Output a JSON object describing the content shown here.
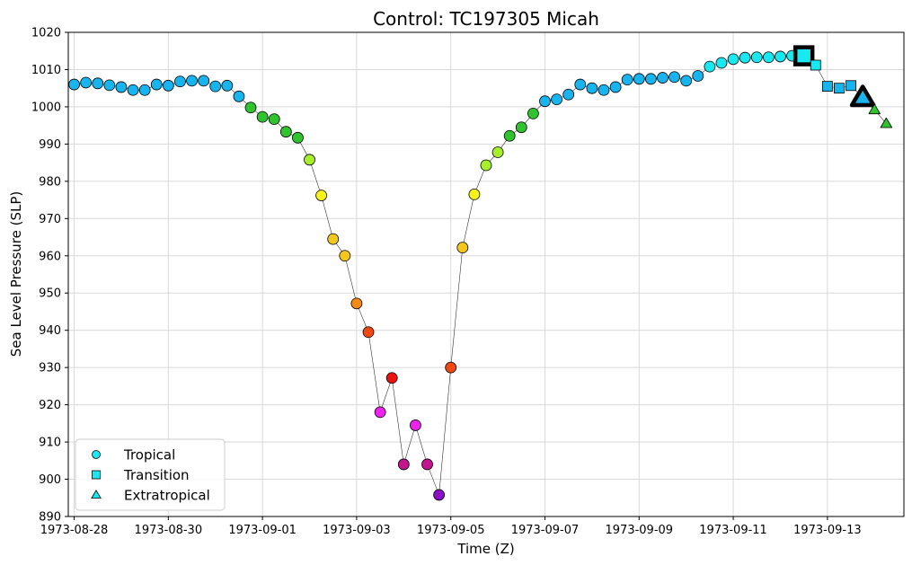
{
  "chart_data": {
    "type": "scatter",
    "title": "Control: TC197305 Micah",
    "xlabel": "Time (Z)",
    "ylabel": "Sea Level Pressure (SLP)",
    "ylim": [
      890,
      1020
    ],
    "yticks": [
      890,
      900,
      910,
      920,
      930,
      940,
      950,
      960,
      970,
      980,
      990,
      1000,
      1010,
      1020
    ],
    "xlim": [
      "1973-08-27 21:00",
      "1973-09-14 15:00"
    ],
    "xticks": [
      "1973-08-28",
      "1973-08-30",
      "1973-09-01",
      "1973-09-03",
      "1973-09-05",
      "1973-09-07",
      "1973-09-09",
      "1973-09-11",
      "1973-09-13"
    ],
    "grid": true,
    "legend_position": "lower-left",
    "legend": [
      {
        "label": "Tropical",
        "marker": "circle"
      },
      {
        "label": "Transition",
        "marker": "square"
      },
      {
        "label": "Extratropical",
        "marker": "triangle"
      }
    ],
    "points": [
      {
        "t": "1973-08-28 00:00",
        "slp": 1006,
        "phase": "tropical",
        "color": "#17b4f0"
      },
      {
        "t": "1973-08-28 06:00",
        "slp": 1006.5,
        "phase": "tropical",
        "color": "#17b4f0"
      },
      {
        "t": "1973-08-28 12:00",
        "slp": 1006.3,
        "phase": "tropical",
        "color": "#17b4f0"
      },
      {
        "t": "1973-08-28 18:00",
        "slp": 1005.8,
        "phase": "tropical",
        "color": "#17b4f0"
      },
      {
        "t": "1973-08-29 00:00",
        "slp": 1005.3,
        "phase": "tropical",
        "color": "#17b4f0"
      },
      {
        "t": "1973-08-29 06:00",
        "slp": 1004.5,
        "phase": "tropical",
        "color": "#17b4f0"
      },
      {
        "t": "1973-08-29 12:00",
        "slp": 1004.5,
        "phase": "tropical",
        "color": "#17b4f0"
      },
      {
        "t": "1973-08-29 18:00",
        "slp": 1006,
        "phase": "tropical",
        "color": "#17b4f0"
      },
      {
        "t": "1973-08-30 00:00",
        "slp": 1005.7,
        "phase": "tropical",
        "color": "#17b4f0"
      },
      {
        "t": "1973-08-30 06:00",
        "slp": 1006.8,
        "phase": "tropical",
        "color": "#17b4f0"
      },
      {
        "t": "1973-08-30 12:00",
        "slp": 1007,
        "phase": "tropical",
        "color": "#17b4f0"
      },
      {
        "t": "1973-08-30 18:00",
        "slp": 1007,
        "phase": "tropical",
        "color": "#17b4f0"
      },
      {
        "t": "1973-08-31 00:00",
        "slp": 1005.5,
        "phase": "tropical",
        "color": "#17b4f0"
      },
      {
        "t": "1973-08-31 06:00",
        "slp": 1005.7,
        "phase": "tropical",
        "color": "#17b4f0"
      },
      {
        "t": "1973-08-31 12:00",
        "slp": 1002.8,
        "phase": "tropical",
        "color": "#17b4f0"
      },
      {
        "t": "1973-08-31 18:00",
        "slp": 999.8,
        "phase": "tropical",
        "color": "#2fc42f"
      },
      {
        "t": "1973-09-01 00:00",
        "slp": 997.3,
        "phase": "tropical",
        "color": "#2fc42f"
      },
      {
        "t": "1973-09-01 06:00",
        "slp": 996.7,
        "phase": "tropical",
        "color": "#2fc42f"
      },
      {
        "t": "1973-09-01 12:00",
        "slp": 993.3,
        "phase": "tropical",
        "color": "#2fc42f"
      },
      {
        "t": "1973-09-01 18:00",
        "slp": 991.7,
        "phase": "tropical",
        "color": "#2fc42f"
      },
      {
        "t": "1973-09-02 00:00",
        "slp": 985.8,
        "phase": "tropical",
        "color": "#a8ef2a"
      },
      {
        "t": "1973-09-02 06:00",
        "slp": 976.2,
        "phase": "tropical",
        "color": "#f7f21a"
      },
      {
        "t": "1973-09-02 12:00",
        "slp": 964.5,
        "phase": "tropical",
        "color": "#f4c81b"
      },
      {
        "t": "1973-09-02 18:00",
        "slp": 960,
        "phase": "tropical",
        "color": "#f4c81b"
      },
      {
        "t": "1973-09-03 00:00",
        "slp": 947.2,
        "phase": "tropical",
        "color": "#f58a12"
      },
      {
        "t": "1973-09-03 06:00",
        "slp": 939.5,
        "phase": "tropical",
        "color": "#f04812"
      },
      {
        "t": "1973-09-03 12:00",
        "slp": 918,
        "phase": "tropical",
        "color": "#ee22ee"
      },
      {
        "t": "1973-09-03 18:00",
        "slp": 927.2,
        "phase": "tropical",
        "color": "#ec1010"
      },
      {
        "t": "1973-09-04 00:00",
        "slp": 904,
        "phase": "tropical",
        "color": "#c0168e"
      },
      {
        "t": "1973-09-04 06:00",
        "slp": 914.5,
        "phase": "tropical",
        "color": "#ee22ee"
      },
      {
        "t": "1973-09-04 12:00",
        "slp": 904,
        "phase": "tropical",
        "color": "#c0168e"
      },
      {
        "t": "1973-09-04 18:00",
        "slp": 895.8,
        "phase": "tropical",
        "color": "#8c10c8"
      },
      {
        "t": "1973-09-05 00:00",
        "slp": 930,
        "phase": "tropical",
        "color": "#f04812"
      },
      {
        "t": "1973-09-05 06:00",
        "slp": 962.2,
        "phase": "tropical",
        "color": "#f4c81b"
      },
      {
        "t": "1973-09-05 12:00",
        "slp": 976.5,
        "phase": "tropical",
        "color": "#f7f21a"
      },
      {
        "t": "1973-09-05 18:00",
        "slp": 984.3,
        "phase": "tropical",
        "color": "#a8ef2a"
      },
      {
        "t": "1973-09-06 00:00",
        "slp": 987.8,
        "phase": "tropical",
        "color": "#a8ef2a"
      },
      {
        "t": "1973-09-06 06:00",
        "slp": 992.2,
        "phase": "tropical",
        "color": "#2fc42f"
      },
      {
        "t": "1973-09-06 12:00",
        "slp": 994.5,
        "phase": "tropical",
        "color": "#2fc42f"
      },
      {
        "t": "1973-09-06 18:00",
        "slp": 998.2,
        "phase": "tropical",
        "color": "#2fc42f"
      },
      {
        "t": "1973-09-07 00:00",
        "slp": 1001.5,
        "phase": "tropical",
        "color": "#17b4f0"
      },
      {
        "t": "1973-09-07 06:00",
        "slp": 1002,
        "phase": "tropical",
        "color": "#17b4f0"
      },
      {
        "t": "1973-09-07 12:00",
        "slp": 1003.3,
        "phase": "tropical",
        "color": "#17b4f0"
      },
      {
        "t": "1973-09-07 18:00",
        "slp": 1006,
        "phase": "tropical",
        "color": "#17b4f0"
      },
      {
        "t": "1973-09-08 00:00",
        "slp": 1005,
        "phase": "tropical",
        "color": "#17b4f0"
      },
      {
        "t": "1973-09-08 06:00",
        "slp": 1004.5,
        "phase": "tropical",
        "color": "#17b4f0"
      },
      {
        "t": "1973-09-08 12:00",
        "slp": 1005.3,
        "phase": "tropical",
        "color": "#17b4f0"
      },
      {
        "t": "1973-09-08 18:00",
        "slp": 1007.3,
        "phase": "tropical",
        "color": "#17b4f0"
      },
      {
        "t": "1973-09-09 00:00",
        "slp": 1007.5,
        "phase": "tropical",
        "color": "#17b4f0"
      },
      {
        "t": "1973-09-09 06:00",
        "slp": 1007.5,
        "phase": "tropical",
        "color": "#17b4f0"
      },
      {
        "t": "1973-09-09 12:00",
        "slp": 1007.8,
        "phase": "tropical",
        "color": "#17b4f0"
      },
      {
        "t": "1973-09-09 18:00",
        "slp": 1008,
        "phase": "tropical",
        "color": "#17b4f0"
      },
      {
        "t": "1973-09-10 00:00",
        "slp": 1007,
        "phase": "tropical",
        "color": "#17b4f0"
      },
      {
        "t": "1973-09-10 06:00",
        "slp": 1008.3,
        "phase": "tropical",
        "color": "#17b4f0"
      },
      {
        "t": "1973-09-10 12:00",
        "slp": 1010.8,
        "phase": "tropical",
        "color": "#18e8f0"
      },
      {
        "t": "1973-09-10 18:00",
        "slp": 1011.8,
        "phase": "tropical",
        "color": "#18e8f0"
      },
      {
        "t": "1973-09-11 00:00",
        "slp": 1012.8,
        "phase": "tropical",
        "color": "#18e8f0"
      },
      {
        "t": "1973-09-11 06:00",
        "slp": 1013.2,
        "phase": "tropical",
        "color": "#18e8f0"
      },
      {
        "t": "1973-09-11 12:00",
        "slp": 1013.3,
        "phase": "tropical",
        "color": "#18e8f0"
      },
      {
        "t": "1973-09-11 18:00",
        "slp": 1013.3,
        "phase": "tropical",
        "color": "#18e8f0"
      },
      {
        "t": "1973-09-12 00:00",
        "slp": 1013.5,
        "phase": "tropical",
        "color": "#18e8f0"
      },
      {
        "t": "1973-09-12 06:00",
        "slp": 1013.7,
        "phase": "tropical",
        "color": "#18e8f0"
      },
      {
        "t": "1973-09-12 12:00",
        "slp": 1013.7,
        "phase": "transition",
        "color": "#18e8f0",
        "highlight": true
      },
      {
        "t": "1973-09-12 18:00",
        "slp": 1011.2,
        "phase": "transition",
        "color": "#18e8f0"
      },
      {
        "t": "1973-09-13 00:00",
        "slp": 1005.5,
        "phase": "transition",
        "color": "#17b4f0"
      },
      {
        "t": "1973-09-13 06:00",
        "slp": 1005,
        "phase": "transition",
        "color": "#17b4f0"
      },
      {
        "t": "1973-09-13 12:00",
        "slp": 1005.7,
        "phase": "transition",
        "color": "#17b4f0"
      },
      {
        "t": "1973-09-13 18:00",
        "slp": 1002.5,
        "phase": "extratropical",
        "color": "#17b4f0",
        "highlight": true
      },
      {
        "t": "1973-09-14 00:00",
        "slp": 999.2,
        "phase": "extratropical",
        "color": "#2fc42f"
      },
      {
        "t": "1973-09-14 06:00",
        "slp": 995.5,
        "phase": "extratropical",
        "color": "#2fc42f"
      }
    ]
  }
}
